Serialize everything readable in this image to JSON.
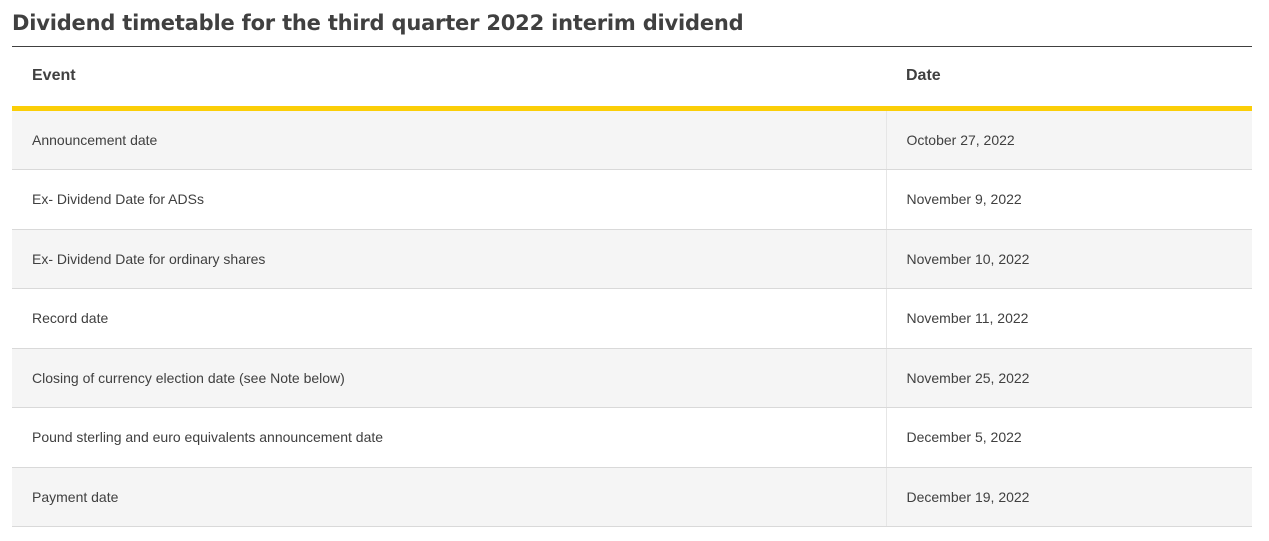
{
  "page": {
    "title": "Dividend timetable for the third quarter 2022 interim dividend"
  },
  "table": {
    "headers": {
      "event": "Event",
      "date": "Date"
    },
    "rows": [
      {
        "event": "Announcement date",
        "date": "October 27, 2022"
      },
      {
        "event": "Ex- Dividend Date for ADSs",
        "date": "November 9, 2022"
      },
      {
        "event": "Ex- Dividend Date for ordinary shares",
        "date": "November 10, 2022"
      },
      {
        "event": "Record date",
        "date": "November 11, 2022"
      },
      {
        "event": "Closing of currency election date (see Note below)",
        "date": "November 25, 2022"
      },
      {
        "event": "Pound sterling and euro equivalents announcement date",
        "date": "December 5, 2022"
      },
      {
        "event": "Payment date",
        "date": "December 19, 2022"
      }
    ]
  },
  "colors": {
    "accent": "#fbce07",
    "text": "#404040",
    "row_shade": "#f5f5f5",
    "divider": "#d9d9d9"
  }
}
